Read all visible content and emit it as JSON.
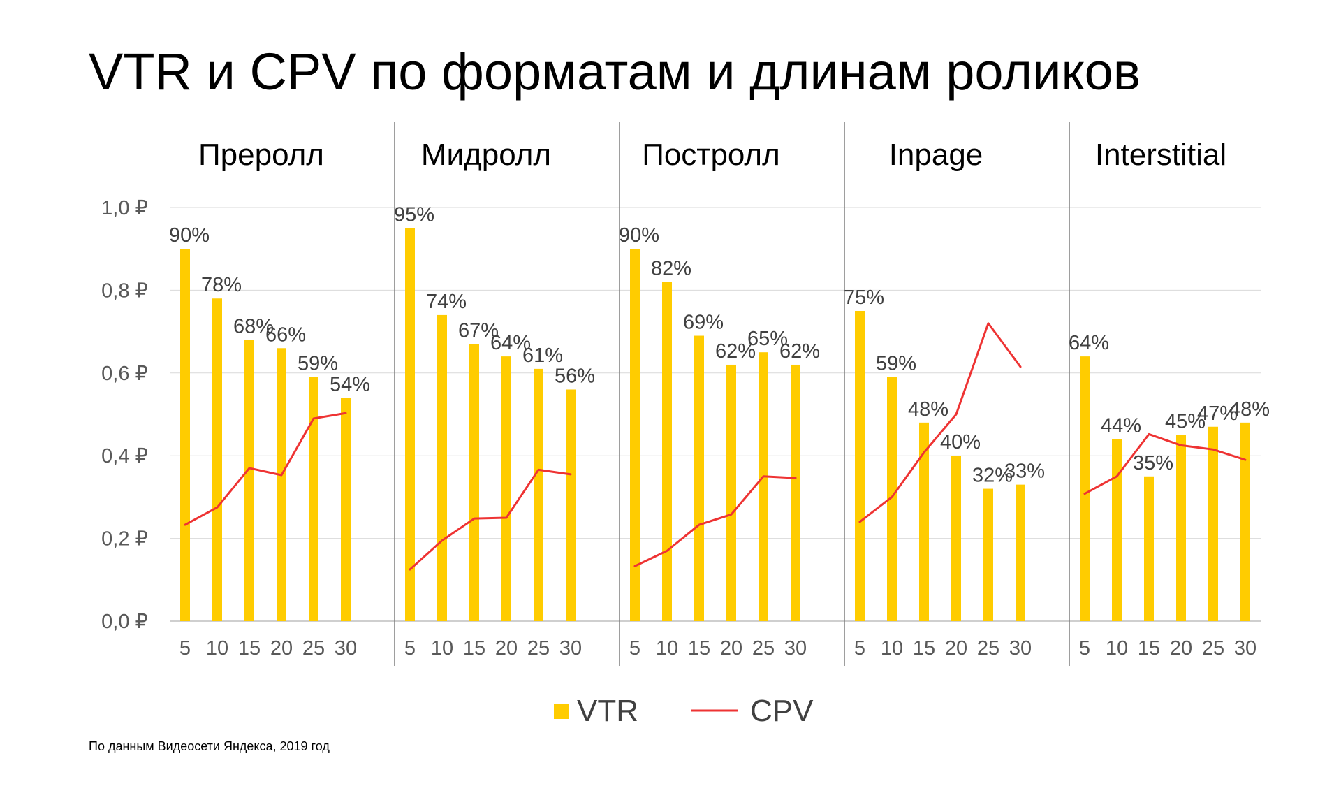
{
  "title": "VTR и CPV по форматам и длинам роликов",
  "source_note": "По данным Видеосети Яндекса, 2019 год",
  "colors": {
    "vtr_bar": "#FFCC00",
    "cpv_line": "#EE3333",
    "gridline": "#D9D9D9",
    "divider": "#7F7F7F",
    "axis_text": "#595959",
    "label_text": "#404040"
  },
  "chart_data": {
    "type": "bar",
    "title": "VTR и CPV по форматам и длинам роликов",
    "x_categories": [
      "5",
      "10",
      "15",
      "20",
      "25",
      "30"
    ],
    "yaxis": {
      "ticks": [
        "0,0 ₽",
        "0,2 ₽",
        "0,4 ₽",
        "0,6 ₽",
        "0,8 ₽",
        "1,0 ₽"
      ],
      "tick_values": [
        0,
        0.2,
        0.4,
        0.6,
        0.8,
        1.0
      ],
      "range": [
        0,
        1.0
      ],
      "grid": true
    },
    "legend": {
      "position": "bottom",
      "items": [
        {
          "name": "VTR",
          "kind": "bar"
        },
        {
          "name": "CPV",
          "kind": "line"
        }
      ]
    },
    "panels": [
      {
        "name": "Преролл",
        "vtr": [
          0.9,
          0.78,
          0.68,
          0.66,
          0.59,
          0.54
        ],
        "vtr_labels": [
          "90%",
          "78%",
          "68%",
          "66%",
          "59%",
          "54%"
        ],
        "cpv": [
          0.233,
          0.275,
          0.37,
          0.353,
          0.49,
          0.503
        ]
      },
      {
        "name": "Мидролл",
        "vtr": [
          0.95,
          0.74,
          0.67,
          0.64,
          0.61,
          0.56
        ],
        "vtr_labels": [
          "95%",
          "74%",
          "67%",
          "64%",
          "61%",
          "56%"
        ],
        "cpv": [
          0.125,
          0.195,
          0.248,
          0.25,
          0.366,
          0.355
        ]
      },
      {
        "name": "Постролл",
        "vtr": [
          0.9,
          0.82,
          0.69,
          0.62,
          0.65,
          0.62
        ],
        "vtr_labels": [
          "90%",
          "82%",
          "69%",
          "62%",
          "65%",
          "62%"
        ],
        "cpv": [
          0.133,
          0.17,
          0.233,
          0.258,
          0.35,
          0.346
        ]
      },
      {
        "name": "Inpage",
        "vtr": [
          0.75,
          0.59,
          0.48,
          0.4,
          0.32,
          0.33
        ],
        "vtr_labels": [
          "75%",
          "59%",
          "48%",
          "40%",
          "32%",
          "33%"
        ],
        "cpv": [
          0.24,
          0.3,
          0.408,
          0.5,
          0.72,
          0.615
        ]
      },
      {
        "name": "Interstitial",
        "vtr": [
          0.64,
          0.44,
          0.35,
          0.45,
          0.47,
          0.48
        ],
        "vtr_labels": [
          "64%",
          "44%",
          "35%",
          "45%",
          "47%",
          "48%"
        ],
        "cpv": [
          0.308,
          0.35,
          0.452,
          0.425,
          0.415,
          0.39
        ]
      }
    ]
  }
}
